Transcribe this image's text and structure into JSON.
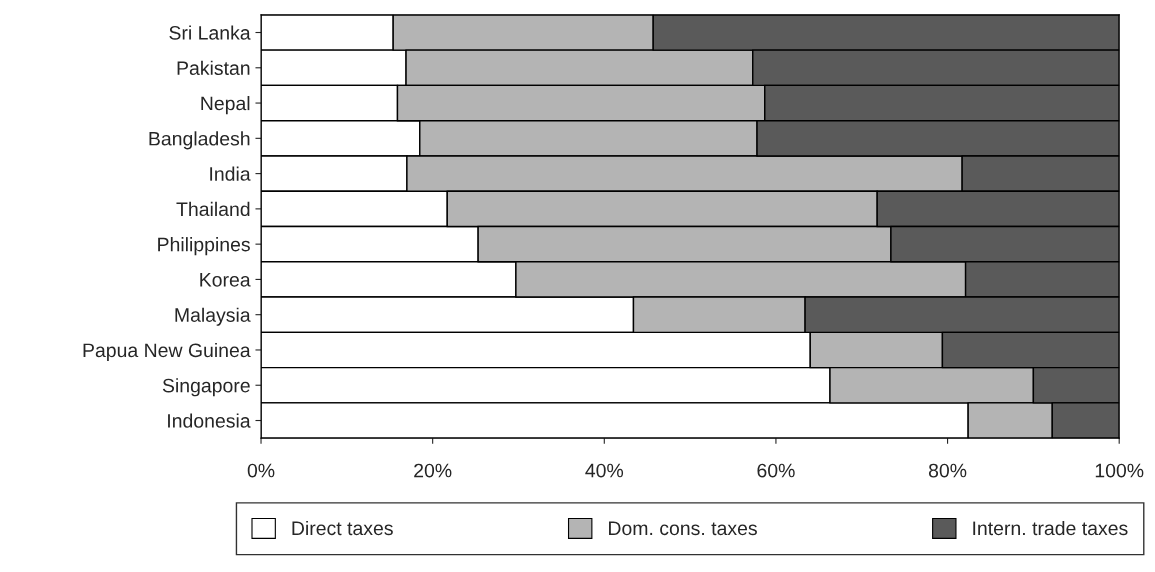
{
  "chart_data": {
    "type": "bar",
    "orientation": "horizontal",
    "stacked": true,
    "categories": [
      "Sri Lanka",
      "Pakistan",
      "Nepal",
      "Bangladesh",
      "India",
      "Thailand",
      "Philippines",
      "Korea",
      "Malaysia",
      "Papua New Guinea",
      "Singapore",
      "Indonesia"
    ],
    "series": [
      {
        "name": "Direct taxes",
        "color": "#ffffff",
        "values": [
          15.4,
          16.9,
          15.9,
          18.5,
          17.0,
          21.7,
          25.3,
          29.7,
          43.4,
          64.0,
          66.3,
          82.4
        ]
      },
      {
        "name": "Dom. cons. taxes",
        "color": "#b4b4b4",
        "values": [
          30.3,
          40.4,
          42.8,
          39.3,
          64.7,
          50.1,
          48.1,
          52.4,
          20.0,
          15.4,
          23.7,
          9.8
        ]
      },
      {
        "name": "Intern. trade taxes",
        "color": "#5a5a5a",
        "values": [
          54.3,
          42.7,
          41.3,
          42.2,
          18.3,
          28.2,
          26.6,
          17.9,
          36.6,
          20.6,
          10.0,
          7.8
        ]
      }
    ],
    "xlim": [
      0,
      100
    ],
    "xticks": [
      {
        "value": 0,
        "label": "0%"
      },
      {
        "value": 20,
        "label": "20%"
      },
      {
        "value": 40,
        "label": "40%"
      },
      {
        "value": 60,
        "label": "60%"
      },
      {
        "value": 80,
        "label": "80%"
      },
      {
        "value": 100,
        "label": "100%"
      }
    ],
    "legend": "bottom"
  }
}
